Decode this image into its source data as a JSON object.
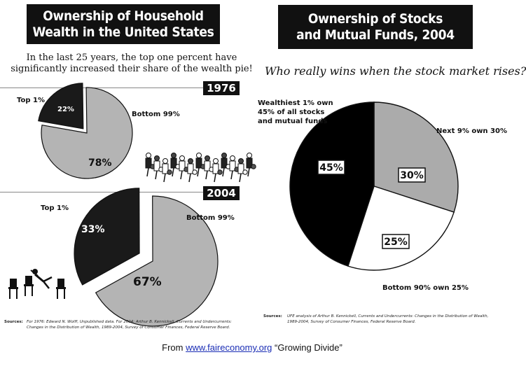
{
  "left_panel": {
    "title_line1": "Ownership of Household",
    "title_line2": "Wealth in the United States",
    "intro_line1": "In the last 25 years, the top one percent have",
    "intro_line2": "significantly increased their share of the wealth pie!",
    "source_label": "Sources:",
    "source_text": "For 1976: Edward N. Wolff, Unpublished data. For 2004: Arthur B. Kennickell, Currents and Undercurrents: Changes in the Distribution of Wealth, 1989-2004, Survey of Consumer Finances, Federal Reserve Board."
  },
  "right_panel": {
    "title_line1": "Ownership of Stocks",
    "title_line2": "and Mutual Funds, 2004",
    "question": "Who really wins when the stock market rises?",
    "source_label": "Sources:",
    "source_text": "UFE analysis of Arthur B. Kennickell, Currents and Undercurrents: Changes in the Distribution of Wealth, 1989-2004, Survey of Consumer Finances, Federal Reserve Board."
  },
  "chart_data": [
    {
      "type": "pie",
      "title": "1976",
      "slices": [
        {
          "label": "Top 1%",
          "value": 22,
          "value_label": "22%",
          "color": "#1a1a1a"
        },
        {
          "label": "Bottom 99%",
          "value": 78,
          "value_label": "78%",
          "color": "#b4b4b4"
        }
      ]
    },
    {
      "type": "pie",
      "title": "2004",
      "slices": [
        {
          "label": "Top 1%",
          "value": 33,
          "value_label": "33%",
          "color": "#1a1a1a"
        },
        {
          "label": "Bottom 99%",
          "value": 67,
          "value_label": "67%",
          "color": "#b4b4b4"
        }
      ]
    },
    {
      "type": "pie",
      "title": "Ownership of Stocks and Mutual Funds, 2004",
      "slices": [
        {
          "label_lines": [
            "Wealthiest 1% own",
            "45% of all stocks",
            "and mutual funds"
          ],
          "value": 45,
          "value_label": "45%",
          "color": "#000000"
        },
        {
          "label_lines": [
            "Next 9% own 30%"
          ],
          "value": 30,
          "value_label": "30%",
          "color": "#ababab"
        },
        {
          "label_lines": [
            "Bottom 90% own 25%"
          ],
          "value": 25,
          "value_label": "25%",
          "color": "#ffffff"
        }
      ]
    }
  ],
  "footer": {
    "prefix": "From ",
    "link_text": "www.faireconomy.org",
    "suffix": " “Growing Divide”"
  }
}
